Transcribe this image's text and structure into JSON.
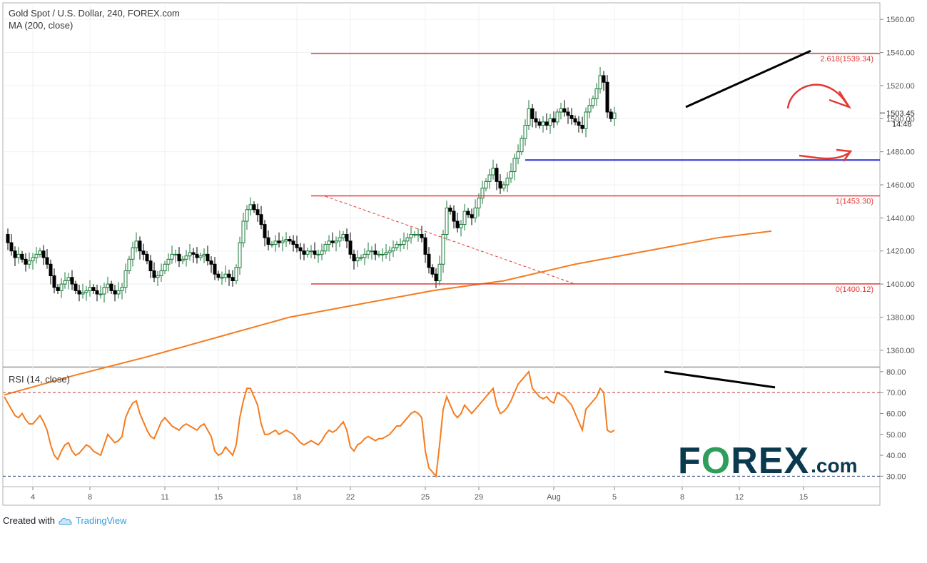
{
  "header": {
    "title": "Gold Spot / U.S. Dollar, 240, FOREX.com",
    "ma_label": "MA (200, close)",
    "rsi_label": "RSI (14, close)"
  },
  "footer": {
    "created_with": "Created with",
    "brand": "TradingView"
  },
  "logo": {
    "part1": "F",
    "part_o": "O",
    "part2": "REX",
    "suffix": ".com"
  },
  "colors": {
    "up_candle": "#ffffff",
    "down_candle": "#000000",
    "candle_outline": "#1a7a3a",
    "ma_line": "#f57c1f",
    "rsi_line": "#f57c1f",
    "fib_line": "#e53935",
    "support_line": "#2b2bd6",
    "trend_line": "#000000",
    "logo_text": "#0b3a4f",
    "logo_accent": "#2e9e5c"
  },
  "chart_data": [
    {
      "type": "candlestick",
      "title": "Gold Spot / U.S. Dollar, 240, FOREX.com",
      "ylim": [
        1350,
        1570
      ],
      "yticks": [
        "1560.00",
        "1540.00",
        "1520.00",
        "1500.00",
        "1480.00",
        "1460.00",
        "1440.00",
        "1420.00",
        "1400.00",
        "1380.00",
        "1360.00"
      ],
      "ytick_values": [
        1560,
        1540,
        1520,
        1500,
        1480,
        1460,
        1440,
        1420,
        1400,
        1380,
        1360
      ],
      "xticks": [
        "4",
        "8",
        "11",
        "15",
        "18",
        "22",
        "25",
        "29",
        "Aug",
        "5",
        "8",
        "12",
        "15"
      ],
      "xtick_index": [
        8,
        24,
        45,
        60,
        82,
        97,
        118,
        133,
        154,
        171,
        190,
        206,
        224
      ],
      "price_label": "1503.45",
      "countdown_label": "14:48",
      "close_series": [
        1430,
        1425,
        1420,
        1416,
        1418,
        1415,
        1412,
        1414,
        1416,
        1418,
        1420,
        1416,
        1412,
        1405,
        1398,
        1396,
        1400,
        1402,
        1404,
        1400,
        1396,
        1394,
        1395,
        1396,
        1398,
        1396,
        1394,
        1394,
        1398,
        1400,
        1396,
        1394,
        1396,
        1398,
        1408,
        1415,
        1422,
        1426,
        1420,
        1418,
        1414,
        1408,
        1404,
        1405,
        1408,
        1412,
        1415,
        1418,
        1418,
        1414,
        1415,
        1417,
        1419,
        1418,
        1416,
        1417,
        1418,
        1414,
        1412,
        1406,
        1404,
        1404,
        1406,
        1404,
        1402,
        1410,
        1425,
        1438,
        1445,
        1448,
        1445,
        1442,
        1436,
        1428,
        1424,
        1424,
        1426,
        1425,
        1426,
        1427,
        1426,
        1424,
        1422,
        1420,
        1418,
        1420,
        1420,
        1418,
        1418,
        1420,
        1424,
        1426,
        1425,
        1426,
        1428,
        1430,
        1426,
        1418,
        1414,
        1416,
        1416,
        1418,
        1420,
        1420,
        1418,
        1418,
        1418,
        1419,
        1420,
        1422,
        1424,
        1424,
        1426,
        1428,
        1430,
        1430,
        1430,
        1428,
        1418,
        1410,
        1406,
        1402,
        1412,
        1430,
        1446,
        1444,
        1438,
        1434,
        1436,
        1444,
        1442,
        1440,
        1446,
        1452,
        1458,
        1462,
        1466,
        1470,
        1462,
        1458,
        1460,
        1464,
        1468,
        1476,
        1480,
        1488,
        1496,
        1506,
        1500,
        1498,
        1496,
        1498,
        1496,
        1500,
        1498,
        1504,
        1506,
        1504,
        1502,
        1500,
        1498,
        1496,
        1494,
        1504,
        1508,
        1512,
        1518,
        1526,
        1522,
        1504,
        1500,
        1503.45
      ],
      "ma200": {
        "name": "MA (200, close)",
        "points": [
          [
            0,
            1333
          ],
          [
            20,
            1345
          ],
          [
            40,
            1356
          ],
          [
            60,
            1368
          ],
          [
            80,
            1380
          ],
          [
            100,
            1388
          ],
          [
            120,
            1396
          ],
          [
            140,
            1402
          ],
          [
            160,
            1412
          ],
          [
            180,
            1420
          ],
          [
            200,
            1428
          ],
          [
            215,
            1432
          ]
        ]
      },
      "fibonacci": [
        {
          "label": "2.618(1539.34)",
          "value": 1539.34
        },
        {
          "label": "1(1453.30)",
          "value": 1453.3
        },
        {
          "label": "0(1400.12)",
          "value": 1400.12
        }
      ],
      "support_line": {
        "value": 1475,
        "from_index": 146
      },
      "trend_line": {
        "from": [
          191,
          1507
        ],
        "to": [
          226,
          1541
        ]
      },
      "dashed_channel": {
        "from": [
          90,
          1453
        ],
        "to": [
          160,
          1400
        ]
      },
      "arrows": [
        "down-arrow",
        "up-arrow"
      ]
    },
    {
      "type": "line",
      "title": "RSI (14, close)",
      "ylim": [
        25,
        82
      ],
      "yticks": [
        "80.00",
        "70.00",
        "60.00",
        "50.00",
        "40.00",
        "30.00"
      ],
      "ytick_values": [
        80,
        70,
        60,
        50,
        40,
        30
      ],
      "levels": [
        70,
        30
      ],
      "series": [
        {
          "values": [
            68,
            65,
            62,
            59,
            58,
            60,
            57,
            55,
            55,
            57,
            59,
            56,
            52,
            45,
            40,
            38,
            42,
            45,
            46,
            42,
            40,
            41,
            43,
            45,
            44,
            42,
            41,
            40,
            45,
            50,
            48,
            46,
            47,
            49,
            58,
            62,
            65,
            66,
            60,
            56,
            52,
            49,
            48,
            52,
            56,
            58,
            56,
            54,
            53,
            52,
            54,
            55,
            54,
            53,
            52,
            54,
            55,
            52,
            49,
            42,
            40,
            41,
            44,
            42,
            40,
            45,
            58,
            66,
            72,
            72,
            68,
            64,
            55,
            50,
            50,
            51,
            52,
            50,
            51,
            52,
            51,
            50,
            48,
            46,
            45,
            46,
            47,
            46,
            45,
            47,
            50,
            52,
            51,
            52,
            54,
            56,
            52,
            44,
            42,
            45,
            46,
            48,
            49,
            48,
            47,
            48,
            48,
            49,
            50,
            52,
            54,
            54,
            56,
            58,
            60,
            61,
            60,
            58,
            42,
            34,
            32,
            30,
            45,
            62,
            68,
            64,
            60,
            58,
            60,
            64,
            62,
            60,
            62,
            64,
            66,
            68,
            70,
            72,
            64,
            60,
            61,
            63,
            66,
            70,
            74,
            76,
            78,
            80,
            72,
            70,
            68,
            67,
            68,
            66,
            65,
            70,
            69,
            68,
            66,
            64,
            60,
            56,
            52,
            62,
            64,
            66,
            68,
            72,
            70,
            52,
            51,
            52
          ]
        }
      ]
    }
  ]
}
